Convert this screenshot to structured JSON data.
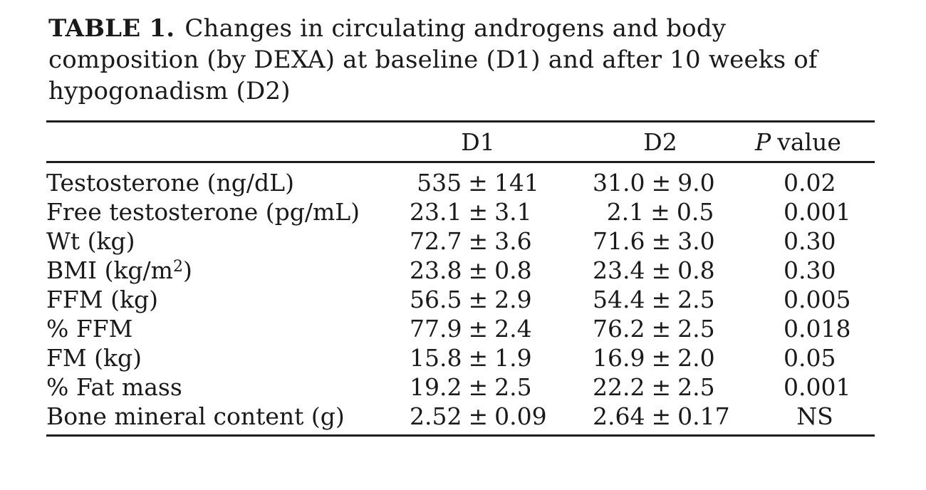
{
  "title": {
    "label": "TABLE 1.",
    "line1": "Changes in circulating androgens and body",
    "line2": "composition (by DEXA) at baseline (D1) and after 10 weeks of",
    "line3": "hypogonadism (D2)"
  },
  "table": {
    "pm": "±",
    "headers": {
      "col1": "",
      "d1": "D1",
      "d2": "D2",
      "p_italic": "P",
      "p_text": "value"
    },
    "rows": [
      {
        "label": "Testosterone (ng/dL)",
        "d1_mean": "535",
        "d1_sd": "141",
        "d2_mean": "31.0",
        "d2_sd": "9.0",
        "p": "0.02"
      },
      {
        "label": "Free testosterone (pg/mL)",
        "d1_mean": "23.1",
        "d1_sd": "3.1",
        "d2_mean": "2.1",
        "d2_sd": "0.5",
        "p": "0.001"
      },
      {
        "label": "Wt (kg)",
        "d1_mean": "72.7",
        "d1_sd": "3.6",
        "d2_mean": "71.6",
        "d2_sd": "3.0",
        "p": "0.30"
      },
      {
        "label_pre": "BMI (kg/m",
        "label_sup": "2",
        "label_post": ")",
        "d1_mean": "23.8",
        "d1_sd": "0.8",
        "d2_mean": "23.4",
        "d2_sd": "0.8",
        "p": "0.30"
      },
      {
        "label": "FFM (kg)",
        "d1_mean": "56.5",
        "d1_sd": "2.9",
        "d2_mean": "54.4",
        "d2_sd": "2.5",
        "p": "0.005"
      },
      {
        "label": "% FFM",
        "d1_mean": "77.9",
        "d1_sd": "2.4",
        "d2_mean": "76.2",
        "d2_sd": "2.5",
        "p": "0.018"
      },
      {
        "label": "FM (kg)",
        "d1_mean": "15.8",
        "d1_sd": "1.9",
        "d2_mean": "16.9",
        "d2_sd": "2.0",
        "p": "0.05"
      },
      {
        "label": "% Fat mass",
        "d1_mean": "19.2",
        "d1_sd": "2.5",
        "d2_mean": "22.2",
        "d2_sd": "2.5",
        "p": "0.001"
      },
      {
        "label": "Bone mineral content (g)",
        "d1_mean": "2.52",
        "d1_sd": "0.09",
        "d2_mean": "2.64",
        "d2_sd": "0.17",
        "p": "NS"
      }
    ]
  }
}
